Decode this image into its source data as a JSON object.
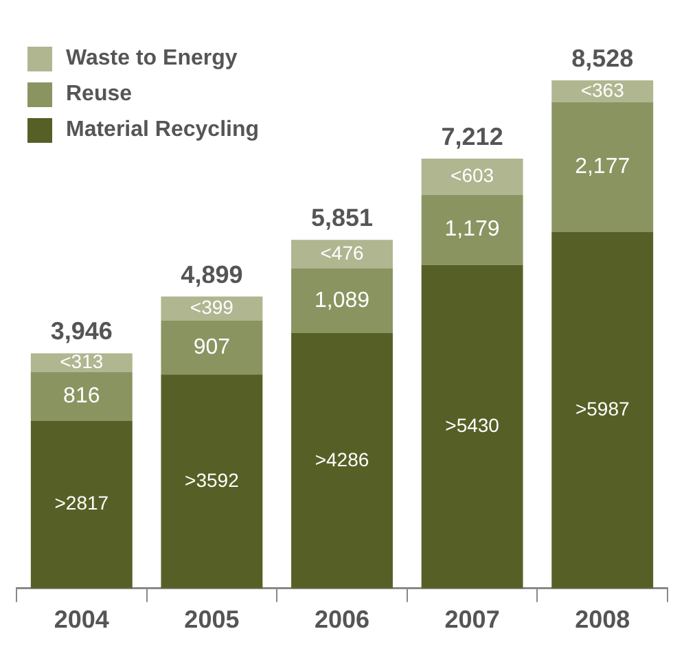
{
  "chart_data": {
    "type": "bar",
    "stacked": true,
    "categories": [
      "2004",
      "2005",
      "2006",
      "2007",
      "2008"
    ],
    "series": [
      {
        "name": "Material Recycling",
        "color": "#566026",
        "values": [
          2817,
          3592,
          4286,
          5430,
          5987
        ],
        "value_labels": [
          ">2817",
          ">3592",
          ">4286",
          ">5430",
          ">5987"
        ]
      },
      {
        "name": "Reuse",
        "color": "#8a9461",
        "values": [
          816,
          907,
          1089,
          1179,
          2177
        ],
        "value_labels": [
          "816",
          "907",
          "1,089",
          "1,179",
          "2,177"
        ]
      },
      {
        "name": "Waste to Energy",
        "color": "#b0b690",
        "values": [
          313,
          399,
          476,
          603,
          363
        ],
        "value_labels": [
          "<313",
          "<399",
          "<476",
          "<603",
          "<363"
        ]
      }
    ],
    "totals": [
      "3,946",
      "4,899",
      "5,851",
      "7,212",
      "8,528"
    ],
    "legend": "top left",
    "grid": false
  }
}
